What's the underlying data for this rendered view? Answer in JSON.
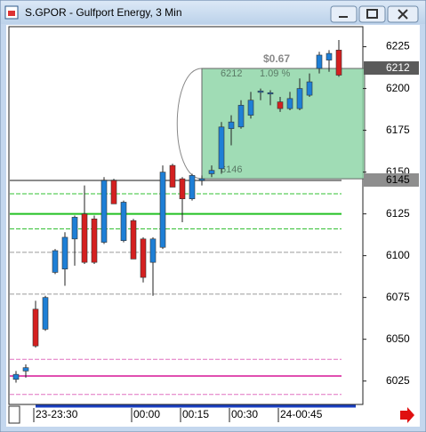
{
  "window": {
    "title": "S.GPOR - Gulfport Energy, 3 Min"
  },
  "chart_data": {
    "type": "candlestick",
    "categories": [
      null,
      null,
      "23-23:30",
      null,
      null,
      null,
      null,
      null,
      null,
      null,
      null,
      null,
      "00:00",
      null,
      null,
      null,
      null,
      "00:15",
      null,
      null,
      null,
      null,
      "00:30",
      null,
      null,
      null,
      null,
      "24-00:45",
      null,
      null,
      null,
      null,
      null,
      null
    ],
    "open": [
      6026,
      6031,
      6068,
      6056,
      6090,
      6092,
      6110,
      6125,
      6122,
      6108,
      6145,
      6109,
      6121,
      6110,
      6096,
      6105,
      6154,
      6146,
      6134,
      6145,
      6149,
      6152,
      6176,
      6177,
      6184,
      6198,
      6197,
      6192,
      6188,
      6188,
      6196,
      6212,
      6217,
      6223
    ],
    "high": [
      6031,
      6035,
      6073,
      6076,
      6104,
      6114,
      6124,
      6142,
      6124,
      6147,
      6146,
      6133,
      6122,
      6111,
      6111,
      6154,
      6155,
      6147,
      6149,
      6148,
      6154,
      6180,
      6184,
      6193,
      6198,
      6200,
      6199,
      6195,
      6198,
      6206,
      6209,
      6222,
      6223,
      6229
    ],
    "low": [
      6024,
      6027,
      6045,
      6055,
      6089,
      6082,
      6094,
      6095,
      6095,
      6107,
      6131,
      6108,
      6098,
      6084,
      6076,
      6104,
      6141,
      6120,
      6133,
      6142,
      6147,
      6149,
      6166,
      6176,
      6182,
      6193,
      6190,
      6186,
      6187,
      6187,
      6195,
      6209,
      6210,
      6207
    ],
    "close": [
      6029,
      6033,
      6046,
      6075,
      6103,
      6111,
      6123,
      6096,
      6096,
      6145,
      6131,
      6132,
      6098,
      6087,
      6110,
      6150,
      6141,
      6134,
      6148,
      6146,
      6151,
      6177,
      6180,
      6190,
      6193,
      6198.5,
      6197.5,
      6188,
      6194,
      6200,
      6204,
      6220,
      6221,
      6208
    ],
    "up_color": "#1e7fd6",
    "down_color": "#d42020",
    "ylim": [
      6011,
      6237
    ],
    "yticks": [
      6025,
      6050,
      6075,
      6100,
      6125,
      6150,
      6175,
      6200,
      6225
    ],
    "levels": [
      {
        "value": 6145,
        "color": "#8c8c8c",
        "dash": false
      },
      {
        "value": 6137,
        "color": "#33c033",
        "dash": true
      },
      {
        "value": 6125,
        "color": "#22c022",
        "dash": false
      },
      {
        "value": 6116,
        "color": "#33c033",
        "dash": true
      },
      {
        "value": 6102,
        "color": "#9a9a9a",
        "dash": true
      },
      {
        "value": 6077,
        "color": "#9a9a9a",
        "dash": true
      },
      {
        "value": 6038,
        "color": "#e070c0",
        "dash": true
      },
      {
        "value": 6028,
        "color": "#e050b0",
        "dash": false
      },
      {
        "value": 6017,
        "color": "#e070c0",
        "dash": true
      }
    ],
    "price_markers": [
      6212,
      6145
    ],
    "measure": {
      "high": 6212,
      "low": 6146,
      "change": "$0.67",
      "percent": "1.09 %"
    }
  }
}
